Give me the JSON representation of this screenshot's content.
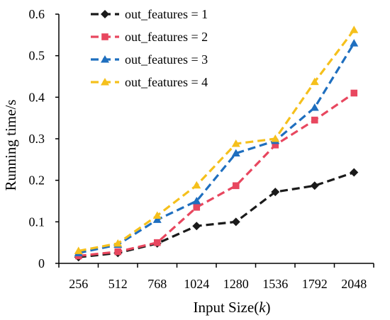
{
  "chart_data": {
    "type": "line",
    "title": "",
    "xlabel": "Input Size(k)",
    "xlabel_main": "Input Size(",
    "xlabel_italic": "k",
    "xlabel_close": ")",
    "ylabel": "Running time/s",
    "categories": [
      "256",
      "512",
      "768",
      "1024",
      "1280",
      "1536",
      "1792",
      "2048"
    ],
    "ylim": [
      0,
      0.6
    ],
    "yticks": [
      "0",
      "0.1",
      "0.2",
      "0.3",
      "0.4",
      "0.5",
      "0.6"
    ],
    "grid": false,
    "legend_position": "top-left",
    "series": [
      {
        "name": "out_features = 1",
        "color": "#1a1a1a",
        "marker": "diamond",
        "values": [
          0.015,
          0.025,
          0.048,
          0.09,
          0.1,
          0.172,
          0.187,
          0.219
        ]
      },
      {
        "name": "out_features = 2",
        "color": "#e8475f",
        "marker": "square",
        "values": [
          0.018,
          0.028,
          0.05,
          0.135,
          0.187,
          0.285,
          0.345,
          0.41
        ]
      },
      {
        "name": "out_features = 3",
        "color": "#1f6fbf",
        "marker": "triangle",
        "values": [
          0.025,
          0.045,
          0.105,
          0.15,
          0.265,
          0.295,
          0.375,
          0.53
        ]
      },
      {
        "name": "out_features = 4",
        "color": "#f5c01c",
        "marker": "triangle",
        "values": [
          0.03,
          0.048,
          0.115,
          0.188,
          0.288,
          0.3,
          0.437,
          0.562
        ]
      }
    ]
  }
}
